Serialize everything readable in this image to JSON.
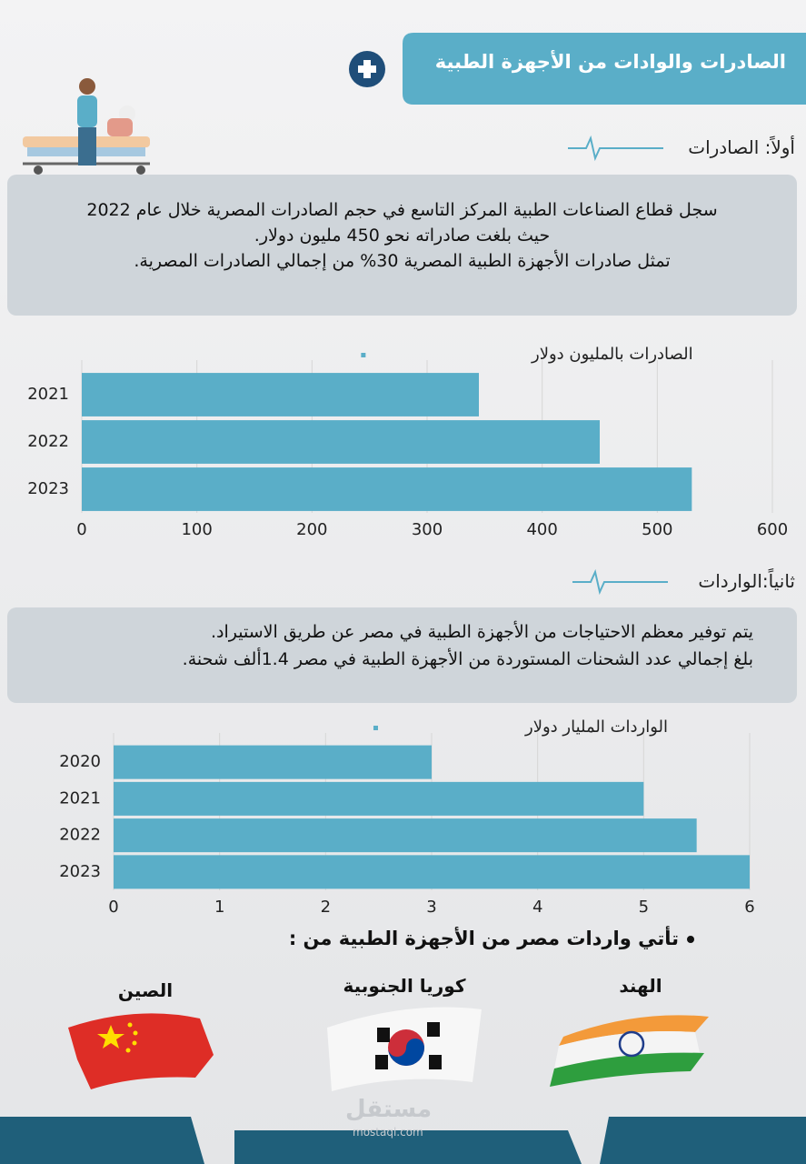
{
  "header": {
    "title": "الصادرات والوادات من الأجهزة الطبية"
  },
  "exports_section": {
    "heading": "أولاً: الصادرات",
    "lines": [
      "سجل قطاع الصناعات الطبية المركز التاسع في حجم الصادرات المصرية خلال عام 2022",
      "حيث بلغت صادراته نحو 450 مليون دولار.",
      "تمثل صادرات الأجهزة الطبية المصرية 30% من إجمالي الصادرات المصرية."
    ]
  },
  "imports_section": {
    "heading": "ثانياً:الواردات",
    "bullets": [
      "يتم  توفير معظم الاحتياجات من الأجهزة الطبية في مصر عن طريق الاستيراد.",
      "بلغ إجمالي عدد الشحنات المستوردة من الأجهزة الطبية في مصر 1.4ألف شحنة."
    ]
  },
  "chart_data": [
    {
      "type": "hbar",
      "categories": [
        "2021",
        "2022",
        "2023"
      ],
      "series": [
        {
          "name": "الصادرات بالمليون دولار",
          "color": "#5aaec8",
          "values": [
            345,
            450,
            530
          ]
        }
      ],
      "xlim": [
        0,
        600
      ],
      "xticks": [
        0,
        100,
        200,
        300,
        400,
        500,
        600
      ],
      "grid": true
    },
    {
      "type": "hbar",
      "categories": [
        "2020",
        "2021",
        "2022",
        "2023"
      ],
      "series": [
        {
          "name": "الواردات المليار دولار",
          "color": "#5aaec8",
          "values": [
            3,
            5,
            5.5,
            6
          ]
        }
      ],
      "xlim": [
        0,
        6
      ],
      "xticks": [
        0,
        1,
        2,
        3,
        4,
        5,
        6
      ],
      "grid": true
    }
  ],
  "sources": {
    "intro": "تأتي واردات مصر من الأجهزة الطبية من :",
    "countries": [
      "الهند",
      "كوريا الجنوبية",
      "الصين"
    ]
  },
  "watermark": {
    "name": "مستقل",
    "site": "mostaql.com"
  }
}
